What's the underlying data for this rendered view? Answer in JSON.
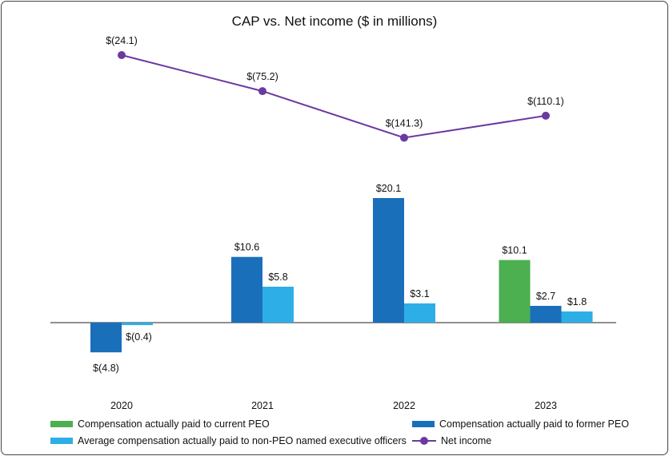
{
  "chart_data": {
    "type": "bar",
    "title": "CAP vs. Net income ($ in millions)",
    "categories": [
      "2020",
      "2021",
      "2022",
      "2023"
    ],
    "series": [
      {
        "name": "Compensation actually paid to current PEO",
        "color": "#4caf50",
        "values": [
          null,
          null,
          null,
          10.1
        ],
        "labels": [
          "",
          "",
          "",
          "$10.1"
        ]
      },
      {
        "name": "Compensation actually paid to former PEO",
        "color": "#1a6fba",
        "values": [
          -4.8,
          10.6,
          20.1,
          2.7
        ],
        "labels": [
          "$(4.8)",
          "$10.6",
          "$20.1",
          "$2.7"
        ]
      },
      {
        "name": "Average compensation actually paid to non-PEO named executive officers",
        "color": "#2eaee6",
        "values": [
          -0.4,
          5.8,
          3.1,
          1.8
        ],
        "labels": [
          "$(0.4)",
          "$5.8",
          "$3.1",
          "$1.8"
        ]
      }
    ],
    "line_series": {
      "name": "Net income",
      "color": "#6a3aa0",
      "values": [
        -24.1,
        -75.2,
        -141.3,
        -110.1
      ],
      "labels": [
        "$(24.1)",
        "$(75.2)",
        "$(141.3)",
        "$(110.1)"
      ]
    },
    "legend": "bottom"
  }
}
